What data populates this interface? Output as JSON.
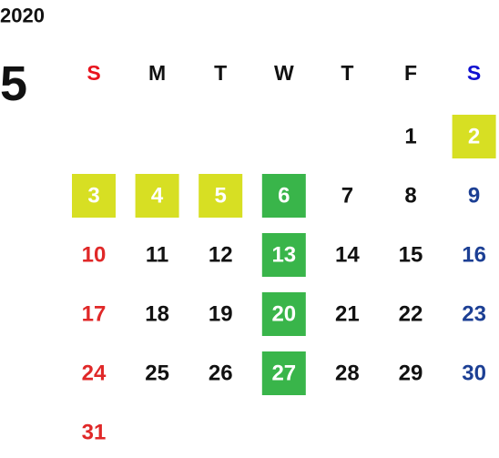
{
  "calendar": {
    "year": "2020",
    "month": "5",
    "weekdays": [
      {
        "label": "S",
        "color": "#e8141e"
      },
      {
        "label": "M",
        "color": "#111111"
      },
      {
        "label": "T",
        "color": "#111111"
      },
      {
        "label": "W",
        "color": "#111111"
      },
      {
        "label": "T",
        "color": "#111111"
      },
      {
        "label": "F",
        "color": "#111111"
      },
      {
        "label": "S",
        "color": "#1010d0"
      }
    ],
    "day_colors": [
      "#e02828",
      "#111111",
      "#111111",
      "#111111",
      "#111111",
      "#111111",
      "#1c3f94"
    ],
    "highlight_text_color": "#ffffff",
    "weeks": [
      [
        null,
        null,
        null,
        null,
        null,
        {
          "day": 1
        },
        {
          "day": 2,
          "fill": "#d7df23"
        }
      ],
      [
        {
          "day": 3,
          "fill": "#d7df23"
        },
        {
          "day": 4,
          "fill": "#d7df23"
        },
        {
          "day": 5,
          "fill": "#d7df23"
        },
        {
          "day": 6,
          "fill": "#39b54a"
        },
        {
          "day": 7
        },
        {
          "day": 8
        },
        {
          "day": 9
        }
      ],
      [
        {
          "day": 10
        },
        {
          "day": 11
        },
        {
          "day": 12
        },
        {
          "day": 13,
          "fill": "#39b54a"
        },
        {
          "day": 14
        },
        {
          "day": 15
        },
        {
          "day": 16
        }
      ],
      [
        {
          "day": 17
        },
        {
          "day": 18
        },
        {
          "day": 19
        },
        {
          "day": 20,
          "fill": "#39b54a"
        },
        {
          "day": 21
        },
        {
          "day": 22
        },
        {
          "day": 23
        }
      ],
      [
        {
          "day": 24
        },
        {
          "day": 25
        },
        {
          "day": 26
        },
        {
          "day": 27,
          "fill": "#39b54a"
        },
        {
          "day": 28
        },
        {
          "day": 29
        },
        {
          "day": 30
        }
      ],
      [
        {
          "day": 31
        },
        null,
        null,
        null,
        null,
        null,
        null
      ]
    ]
  }
}
